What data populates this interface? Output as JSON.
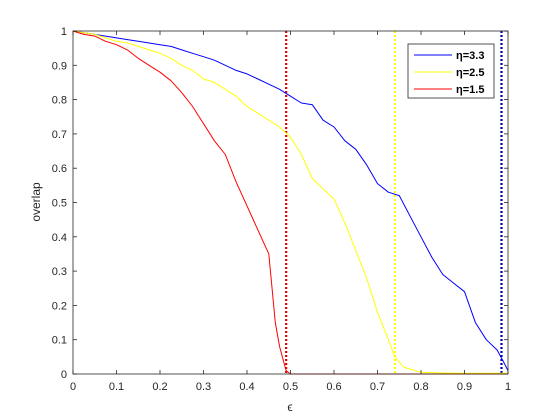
{
  "chart_data": {
    "type": "line",
    "xlabel": "ϵ",
    "ylabel": "overlap",
    "xlim": [
      0,
      1
    ],
    "ylim": [
      0,
      1
    ],
    "xticks": [
      "0",
      "0.1",
      "0.2",
      "0.3",
      "0.4",
      "0.5",
      "0.6",
      "0.7",
      "0.8",
      "0.9",
      "1"
    ],
    "yticks": [
      "0",
      "0.1",
      "0.2",
      "0.3",
      "0.4",
      "0.5",
      "0.6",
      "0.7",
      "0.8",
      "0.9",
      "1"
    ],
    "grid": false,
    "legend_position": "top-right",
    "series": [
      {
        "name": "η=3.3",
        "color": "#0000ff",
        "x": [
          0,
          0.025,
          0.05,
          0.075,
          0.1,
          0.125,
          0.15,
          0.175,
          0.2,
          0.225,
          0.25,
          0.275,
          0.3,
          0.325,
          0.35,
          0.375,
          0.4,
          0.425,
          0.45,
          0.475,
          0.5,
          0.525,
          0.55,
          0.575,
          0.6,
          0.625,
          0.65,
          0.675,
          0.7,
          0.725,
          0.75,
          0.775,
          0.8,
          0.825,
          0.85,
          0.875,
          0.9,
          0.925,
          0.95,
          0.975,
          0.99,
          1.0
        ],
        "y": [
          1.0,
          0.995,
          0.99,
          0.985,
          0.98,
          0.975,
          0.97,
          0.965,
          0.96,
          0.955,
          0.945,
          0.935,
          0.925,
          0.915,
          0.9,
          0.885,
          0.875,
          0.86,
          0.845,
          0.83,
          0.81,
          0.79,
          0.785,
          0.74,
          0.72,
          0.68,
          0.655,
          0.61,
          0.555,
          0.53,
          0.52,
          0.46,
          0.4,
          0.34,
          0.29,
          0.265,
          0.24,
          0.15,
          0.1,
          0.07,
          0.035,
          0.01
        ]
      },
      {
        "name": "η=2.5",
        "color": "#ffff00",
        "x": [
          0,
          0.025,
          0.05,
          0.075,
          0.1,
          0.125,
          0.15,
          0.175,
          0.2,
          0.225,
          0.25,
          0.275,
          0.3,
          0.325,
          0.35,
          0.375,
          0.4,
          0.425,
          0.45,
          0.475,
          0.5,
          0.525,
          0.55,
          0.575,
          0.6,
          0.625,
          0.65,
          0.675,
          0.7,
          0.725,
          0.74,
          0.76,
          0.8,
          0.85,
          0.9,
          0.95,
          1.0
        ],
        "y": [
          1.0,
          0.995,
          0.99,
          0.98,
          0.97,
          0.965,
          0.955,
          0.945,
          0.935,
          0.92,
          0.9,
          0.885,
          0.86,
          0.85,
          0.83,
          0.81,
          0.78,
          0.76,
          0.74,
          0.72,
          0.69,
          0.64,
          0.57,
          0.54,
          0.51,
          0.44,
          0.36,
          0.28,
          0.18,
          0.1,
          0.05,
          0.02,
          0.005,
          0.003,
          0.002,
          0.002,
          0.002
        ]
      },
      {
        "name": "η=1.5",
        "color": "#ff0000",
        "x": [
          0,
          0.025,
          0.05,
          0.075,
          0.1,
          0.125,
          0.15,
          0.175,
          0.2,
          0.225,
          0.25,
          0.275,
          0.3,
          0.325,
          0.35,
          0.375,
          0.4,
          0.425,
          0.45,
          0.465,
          0.475,
          0.49,
          0.5,
          0.6,
          0.7,
          0.8,
          0.9,
          1.0
        ],
        "y": [
          1.0,
          0.99,
          0.985,
          0.97,
          0.96,
          0.945,
          0.92,
          0.9,
          0.88,
          0.855,
          0.82,
          0.78,
          0.73,
          0.68,
          0.64,
          0.56,
          0.49,
          0.42,
          0.35,
          0.15,
          0.08,
          0.01,
          0.0,
          0.0,
          0.0,
          0.0,
          0.0,
          0.0
        ]
      }
    ],
    "vertical_lines": [
      {
        "x": 0.49,
        "color": "#dd0000",
        "style": "dotted"
      },
      {
        "x": 0.74,
        "color": "#ffff00",
        "style": "dotted"
      },
      {
        "x": 0.985,
        "color": "#0000aa",
        "style": "dotted"
      }
    ]
  }
}
